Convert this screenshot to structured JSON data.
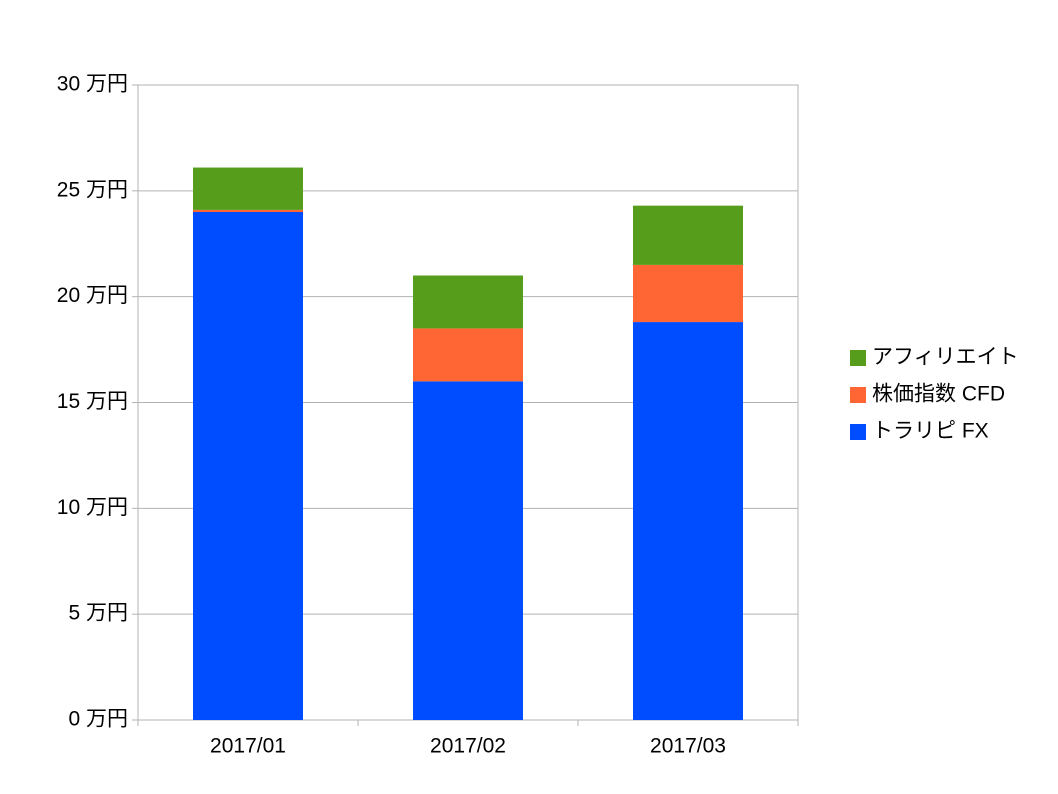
{
  "chart_data": {
    "type": "stacked_bar",
    "categories": [
      "2017/01",
      "2017/02",
      "2017/03"
    ],
    "series": [
      {
        "name": "トラリピ FX",
        "color": "#004cff",
        "values": [
          24,
          16,
          18.8
        ]
      },
      {
        "name": "株価指数 CFD",
        "color": "#ff6633",
        "values": [
          0.1,
          2.5,
          2.7
        ]
      },
      {
        "name": "アフィリエイト",
        "color": "#579d1c",
        "values": [
          2,
          2.5,
          2.8
        ]
      }
    ],
    "ylim": [
      0,
      30
    ],
    "yticks": [
      {
        "value": 0,
        "label": "0 万円"
      },
      {
        "value": 5,
        "label": "5 万円"
      },
      {
        "value": 10,
        "label": "10 万円"
      },
      {
        "value": 15,
        "label": "15 万円"
      },
      {
        "value": 20,
        "label": "20 万円"
      },
      {
        "value": 25,
        "label": "25 万円"
      },
      {
        "value": 30,
        "label": "30 万円"
      }
    ],
    "grid": true,
    "legend": "right"
  }
}
